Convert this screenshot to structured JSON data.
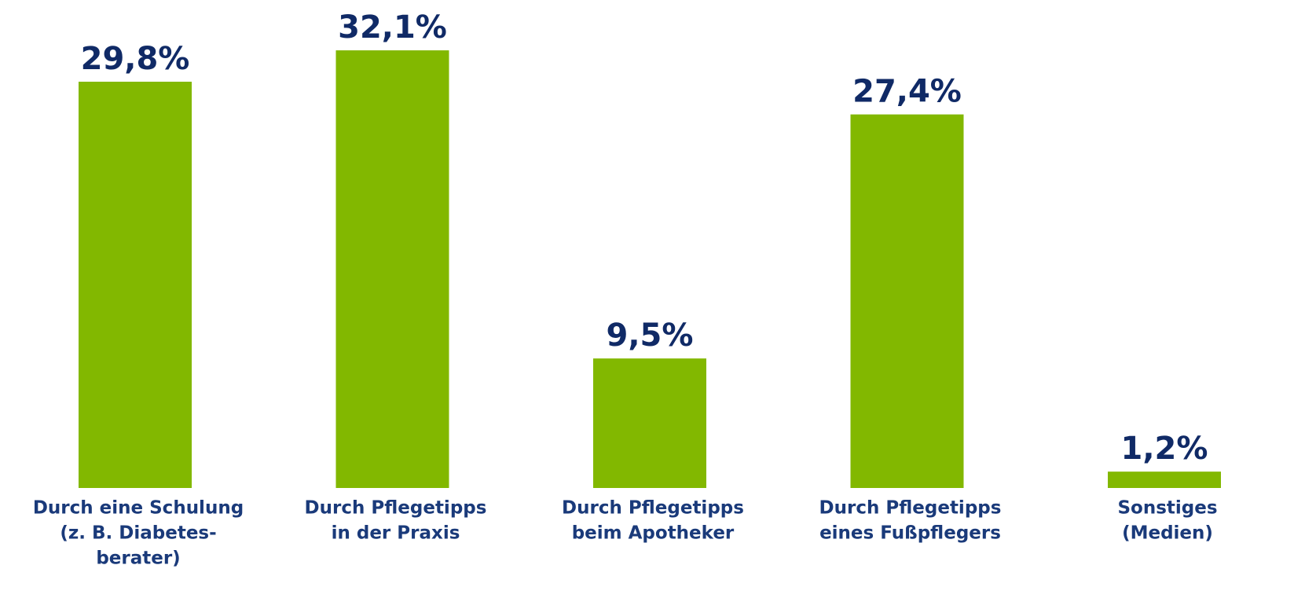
{
  "chart_data": {
    "type": "bar",
    "categories": [
      [
        "Durch eine Schulung",
        "(z. B. Diabetes-",
        "berater)"
      ],
      [
        "Durch Pflegetipps",
        "in der Praxis"
      ],
      [
        "Durch Pflegetipps",
        "beim Apotheker"
      ],
      [
        "Durch Pflegetipps",
        "eines Fußpflegers"
      ],
      [
        "Sonstiges",
        "(Medien)"
      ]
    ],
    "values": [
      29.8,
      32.1,
      9.5,
      27.4,
      1.2
    ],
    "value_labels": [
      "29,8%",
      "32,1%",
      "9,5%",
      "27,4%",
      "1,2%"
    ],
    "color": "#82b800"
  }
}
